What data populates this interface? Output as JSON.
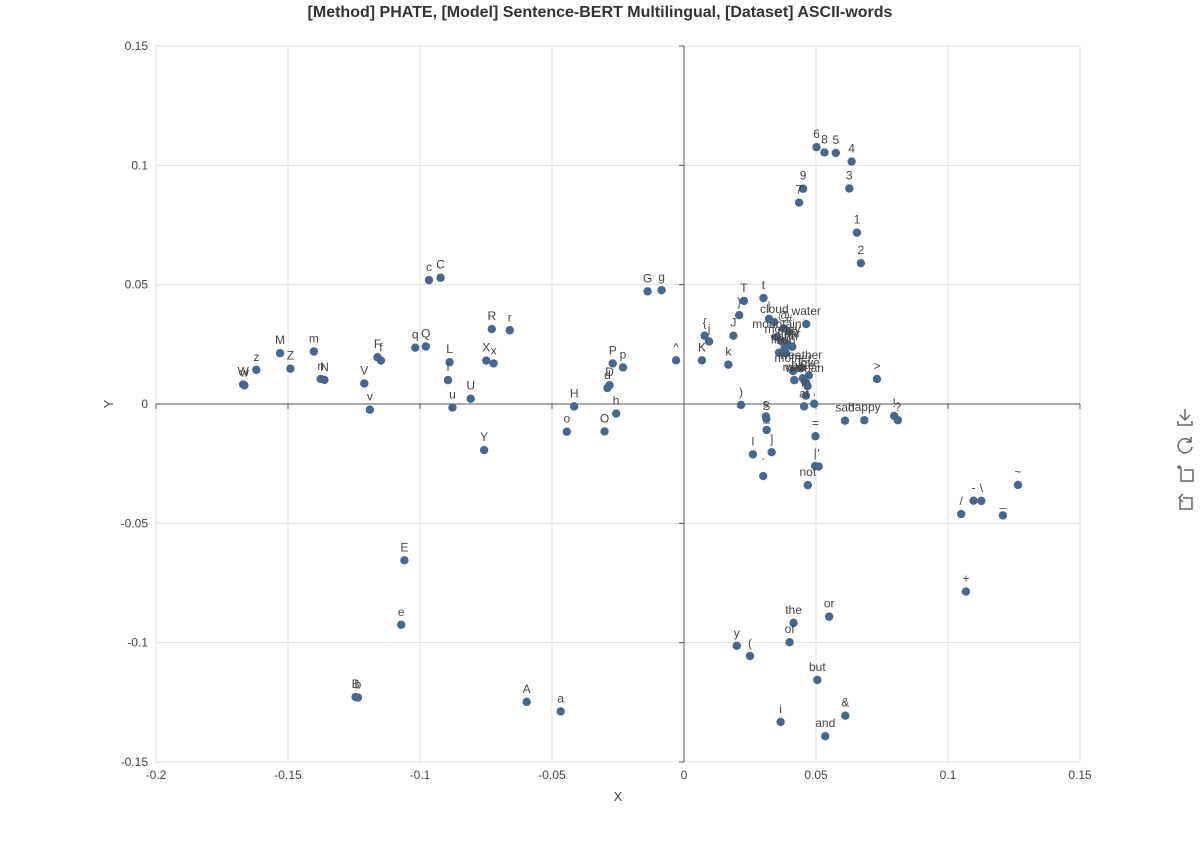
{
  "chart_data": {
    "type": "scatter",
    "title": "[Method] PHATE, [Model] Sentence-BERT Multilingual, [Dataset] ASCII-words",
    "xlabel": "X",
    "ylabel": "Y",
    "xlim": [
      -0.2,
      0.15
    ],
    "ylim": [
      -0.15,
      0.15
    ],
    "xticks": [
      -0.2,
      -0.15,
      -0.1,
      -0.05,
      0,
      0.05,
      0.1,
      0.15
    ],
    "yticks": [
      -0.15,
      -0.1,
      -0.05,
      0,
      0.05,
      0.1,
      0.15
    ],
    "xtick_labels": [
      "-0.2",
      "-0.15",
      "-0.1",
      "-0.05",
      "0",
      "0.05",
      "0.1",
      "0.15"
    ],
    "ytick_labels": [
      "-0.15",
      "-0.1",
      "-0.05",
      "0",
      "0.05",
      "0.1",
      "0.15"
    ],
    "grid": true,
    "marker_color": "#46688f",
    "points": [
      {
        "label": "6",
        "x": 0.0502,
        "y": 0.1076
      },
      {
        "label": "8",
        "x": 0.0532,
        "y": 0.1054
      },
      {
        "label": "5",
        "x": 0.0575,
        "y": 0.1052
      },
      {
        "label": "4",
        "x": 0.0635,
        "y": 0.1016
      },
      {
        "label": "9",
        "x": 0.0451,
        "y": 0.0902
      },
      {
        "label": "3",
        "x": 0.0626,
        "y": 0.0903
      },
      {
        "label": "7",
        "x": 0.0436,
        "y": 0.0844
      },
      {
        "label": "1",
        "x": 0.0655,
        "y": 0.0718
      },
      {
        "label": "2",
        "x": 0.067,
        "y": 0.059
      },
      {
        "label": "c",
        "x": -0.0966,
        "y": 0.0519
      },
      {
        "label": "C",
        "x": -0.0922,
        "y": 0.0529
      },
      {
        "label": "G",
        "x": -0.0138,
        "y": 0.0472
      },
      {
        "label": "g",
        "x": -0.0085,
        "y": 0.0477
      },
      {
        "label": "T",
        "x": 0.0227,
        "y": 0.0432
      },
      {
        "label": "t",
        "x": 0.0301,
        "y": 0.0444
      },
      {
        "label": "}",
        "x": 0.0209,
        "y": 0.0372
      },
      {
        "label": "|",
        "x": 0.0322,
        "y": 0.0357
      },
      {
        "label": "cloud",
        "x": 0.0342,
        "y": 0.0343
      },
      {
        "label": "water",
        "x": 0.0463,
        "y": 0.0335
      },
      {
        "label": "@",
        "x": 0.0378,
        "y": 0.0317
      },
      {
        "label": "#",
        "x": 0.0398,
        "y": 0.0302
      },
      {
        "label": "mountain",
        "x": 0.0352,
        "y": 0.028
      },
      {
        "label": "money",
        "x": 0.0373,
        "y": 0.026
      },
      {
        "label": "tree",
        "x": 0.0393,
        "y": 0.025
      },
      {
        "label": "car",
        "x": 0.041,
        "y": 0.024
      },
      {
        "label": "earth",
        "x": 0.038,
        "y": 0.023
      },
      {
        "label": "fire",
        "x": 0.036,
        "y": 0.0215
      },
      {
        "label": "sun",
        "x": 0.0386,
        "y": 0.0213
      },
      {
        "label": "R",
        "x": -0.0728,
        "y": 0.0314
      },
      {
        "label": "r",
        "x": -0.066,
        "y": 0.0309
      },
      {
        "label": "{",
        "x": 0.0078,
        "y": 0.0286
      },
      {
        "label": "j",
        "x": 0.0095,
        "y": 0.0262
      },
      {
        "label": "J",
        "x": 0.0187,
        "y": 0.0286
      },
      {
        "label": "K",
        "x": 0.0068,
        "y": 0.0183
      },
      {
        "label": "k",
        "x": 0.0168,
        "y": 0.0165
      },
      {
        "label": "M",
        "x": -0.153,
        "y": 0.0213
      },
      {
        "label": "m",
        "x": -0.1402,
        "y": 0.022
      },
      {
        "label": "q",
        "x": -0.1018,
        "y": 0.0236
      },
      {
        "label": "Q",
        "x": -0.0978,
        "y": 0.0241
      },
      {
        "label": "F",
        "x": -0.1161,
        "y": 0.0196
      },
      {
        "label": "f",
        "x": -0.1148,
        "y": 0.0182
      },
      {
        "label": "X",
        "x": -0.0749,
        "y": 0.0182
      },
      {
        "label": "x",
        "x": -0.0721,
        "y": 0.017
      },
      {
        "label": "L",
        "x": -0.0888,
        "y": 0.0175
      },
      {
        "label": "P",
        "x": -0.027,
        "y": 0.017
      },
      {
        "label": "p",
        "x": -0.0231,
        "y": 0.0153
      },
      {
        "label": "^",
        "x": -0.003,
        "y": 0.0183
      },
      {
        "label": "z",
        "x": -0.162,
        "y": 0.0143
      },
      {
        "label": "Z",
        "x": -0.1491,
        "y": 0.0148
      },
      {
        "label": "n",
        "x": -0.1376,
        "y": 0.0105
      },
      {
        "label": "N",
        "x": -0.1362,
        "y": 0.0101
      },
      {
        "label": "W",
        "x": -0.167,
        "y": 0.0082
      },
      {
        "label": "w",
        "x": -0.1665,
        "y": 0.0078
      },
      {
        "label": "V",
        "x": -0.1211,
        "y": 0.0086
      },
      {
        "label": "l",
        "x": -0.0894,
        "y": 0.01
      },
      {
        "label": "U",
        "x": -0.0808,
        "y": 0.0022
      },
      {
        "label": "d",
        "x": -0.029,
        "y": 0.0067
      },
      {
        "label": "D",
        "x": -0.0282,
        "y": 0.0079
      },
      {
        "label": "weather",
        "x": 0.0443,
        "y": 0.015
      },
      {
        "label": "mother",
        "x": 0.0413,
        "y": 0.0138
      },
      {
        "label": "love",
        "x": 0.0473,
        "y": 0.012
      },
      {
        "label": "hate",
        "x": 0.045,
        "y": 0.0108
      },
      {
        "label": "man",
        "x": 0.0418,
        "y": 0.01
      },
      {
        "label": "woman",
        "x": 0.0457,
        "y": 0.0096
      },
      {
        "label": ">",
        "x": 0.0731,
        "y": 0.0105
      },
      {
        "label": "in",
        "x": 0.0462,
        "y": 0.0035
      },
      {
        "label": ".",
        "x": 0.0468,
        "y": 0.0075
      },
      {
        "label": "v",
        "x": -0.119,
        "y": -0.0024
      },
      {
        "label": "u",
        "x": -0.0877,
        "y": -0.0015
      },
      {
        "label": "H",
        "x": -0.0416,
        "y": -0.001
      },
      {
        "label": ")",
        "x": 0.0216,
        "y": -0.0004
      },
      {
        "label": "at",
        "x": 0.0455,
        "y": -0.001
      },
      {
        "label": ",",
        "x": 0.0493,
        "y": 0.0001
      },
      {
        "label": "sad",
        "x": 0.061,
        "y": -0.007
      },
      {
        "label": "happy",
        "x": 0.0683,
        "y": -0.0068
      },
      {
        "label": "!",
        "x": 0.0796,
        "y": -0.005
      },
      {
        "label": "?",
        "x": 0.081,
        "y": -0.0068
      },
      {
        "label": "o",
        "x": -0.0444,
        "y": -0.0116
      },
      {
        "label": "O",
        "x": -0.0301,
        "y": -0.0115
      },
      {
        "label": "h",
        "x": -0.0257,
        "y": -0.004
      },
      {
        "label": "s",
        "x": 0.031,
        "y": -0.0052
      },
      {
        "label": "S",
        "x": 0.0312,
        "y": -0.0062
      },
      {
        "label": "_",
        "x": 0.0313,
        "y": -0.0109
      },
      {
        "label": "=",
        "x": 0.0498,
        "y": -0.0135
      },
      {
        "label": "]",
        "x": 0.0332,
        "y": -0.0202
      },
      {
        "label": "I",
        "x": 0.0261,
        "y": -0.0211
      },
      {
        "label": "Y",
        "x": -0.0757,
        "y": -0.0193
      },
      {
        "label": "`",
        "x": 0.03,
        "y": -0.0302
      },
      {
        "label": "|",
        "x": 0.0497,
        "y": -0.026
      },
      {
        "label": "'",
        "x": 0.051,
        "y": -0.0262
      },
      {
        "label": "not",
        "x": 0.0469,
        "y": -0.034
      },
      {
        "label": "~",
        "x": 0.1265,
        "y": -0.0339
      },
      {
        "label": "-",
        "x": 0.1097,
        "y": -0.0405
      },
      {
        "label": "\\",
        "x": 0.1126,
        "y": -0.0406
      },
      {
        "label": "/",
        "x": 0.105,
        "y": -0.0461
      },
      {
        "label": "_",
        "x": 0.1208,
        "y": -0.0467
      },
      {
        "label": "E",
        "x": -0.1059,
        "y": -0.0655
      },
      {
        "label": "+",
        "x": 0.1068,
        "y": -0.0786
      },
      {
        "label": "e",
        "x": -0.1071,
        "y": -0.0925
      },
      {
        "label": "the",
        "x": 0.0415,
        "y": -0.0917
      },
      {
        "label": "or",
        "x": 0.055,
        "y": -0.0891
      },
      {
        "label": "of",
        "x": 0.04,
        "y": -0.0998
      },
      {
        "label": "y",
        "x": 0.02,
        "y": -0.1013
      },
      {
        "label": "(",
        "x": 0.025,
        "y": -0.1056
      },
      {
        "label": "but",
        "x": 0.0505,
        "y": -0.1156
      },
      {
        "label": "B",
        "x": -0.1244,
        "y": -0.1228
      },
      {
        "label": "b",
        "x": -0.1235,
        "y": -0.123
      },
      {
        "label": "A",
        "x": -0.0596,
        "y": -0.1248
      },
      {
        "label": "a",
        "x": -0.0467,
        "y": -0.1288
      },
      {
        "label": "&",
        "x": 0.0611,
        "y": -0.1306
      },
      {
        "label": "i",
        "x": 0.0366,
        "y": -0.1332
      },
      {
        "label": "and",
        "x": 0.0535,
        "y": -0.1392
      }
    ]
  },
  "toolbar": {
    "icons": [
      "download-icon",
      "reset-icon",
      "expand-icon",
      "collapse-icon"
    ]
  }
}
